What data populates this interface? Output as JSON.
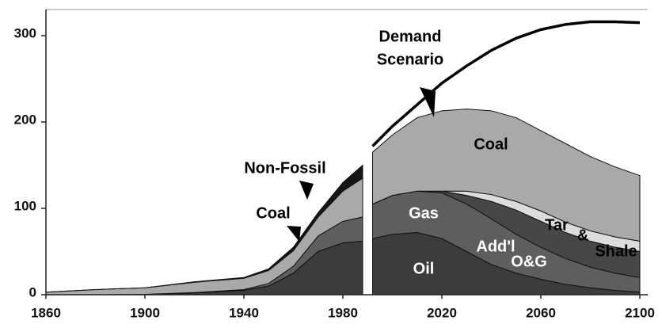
{
  "chart_data": {
    "type": "stacked_area",
    "x": [
      1860,
      1880,
      1900,
      1920,
      1940,
      1950,
      1960,
      1970,
      1980,
      1988,
      1990,
      1992,
      2000,
      2010,
      2020,
      2030,
      2040,
      2050,
      2060,
      2070,
      2080,
      2090,
      2100
    ],
    "series": [
      {
        "color": "#3c3c3c",
        "values": [
          0,
          0,
          0.5,
          2,
          5,
          10,
          25,
          50,
          60,
          62,
          null,
          65,
          70,
          72,
          65,
          50,
          35,
          25,
          18,
          12,
          8,
          5,
          3
        ]
      },
      {
        "color": "#5e5e5e",
        "values": [
          0,
          0,
          0,
          0.5,
          1,
          3,
          8,
          18,
          25,
          28,
          null,
          40,
          45,
          48,
          53,
          55,
          53,
          45,
          37,
          30,
          24,
          20,
          17
        ]
      },
      {
        "color": "#474747",
        "values": [
          null,
          null,
          null,
          null,
          null,
          null,
          null,
          null,
          null,
          null,
          null,
          0,
          0,
          0,
          2,
          10,
          20,
          28,
          30,
          30,
          30,
          30,
          30
        ]
      },
      {
        "color": "#dcdcdc",
        "values": [
          null,
          null,
          null,
          null,
          null,
          null,
          null,
          null,
          null,
          null,
          null,
          0,
          0,
          0,
          0,
          5,
          8,
          10,
          12,
          12,
          12,
          12,
          12
        ]
      },
      {
        "color": "#a9a9a9",
        "values": [
          3,
          6,
          7.5,
          12,
          13,
          15,
          18,
          22,
          35,
          45,
          null,
          60,
          70,
          85,
          93,
          95,
          97,
          97,
          93,
          91,
          86,
          81,
          76
        ]
      },
      {
        "color": "#151515",
        "values": [
          0,
          0,
          0,
          0.5,
          1,
          2,
          4,
          5,
          10,
          15,
          null,
          null,
          null,
          null,
          null,
          null,
          null,
          null,
          null,
          null,
          null,
          null,
          null
        ]
      }
    ],
    "demand": {
      "color": "#000000",
      "values": [
        null,
        null,
        null,
        null,
        null,
        null,
        null,
        null,
        null,
        null,
        null,
        172,
        195,
        220,
        245,
        265,
        283,
        297,
        307,
        313,
        316,
        316,
        315
      ]
    },
    "annotations": [
      "Demand",
      "Scenario",
      "Coal",
      "Gas",
      "Oil",
      "Add'l",
      "O&G",
      "Tar",
      "&",
      "Shale",
      "Non-Fossil",
      "Coal"
    ],
    "xlim": [
      1860,
      2100
    ],
    "ylim": [
      0,
      300
    ],
    "xticks": [
      1860,
      1900,
      1940,
      1980,
      2020,
      2060,
      2100
    ],
    "yticks": [
      0,
      100,
      200,
      300
    ]
  }
}
